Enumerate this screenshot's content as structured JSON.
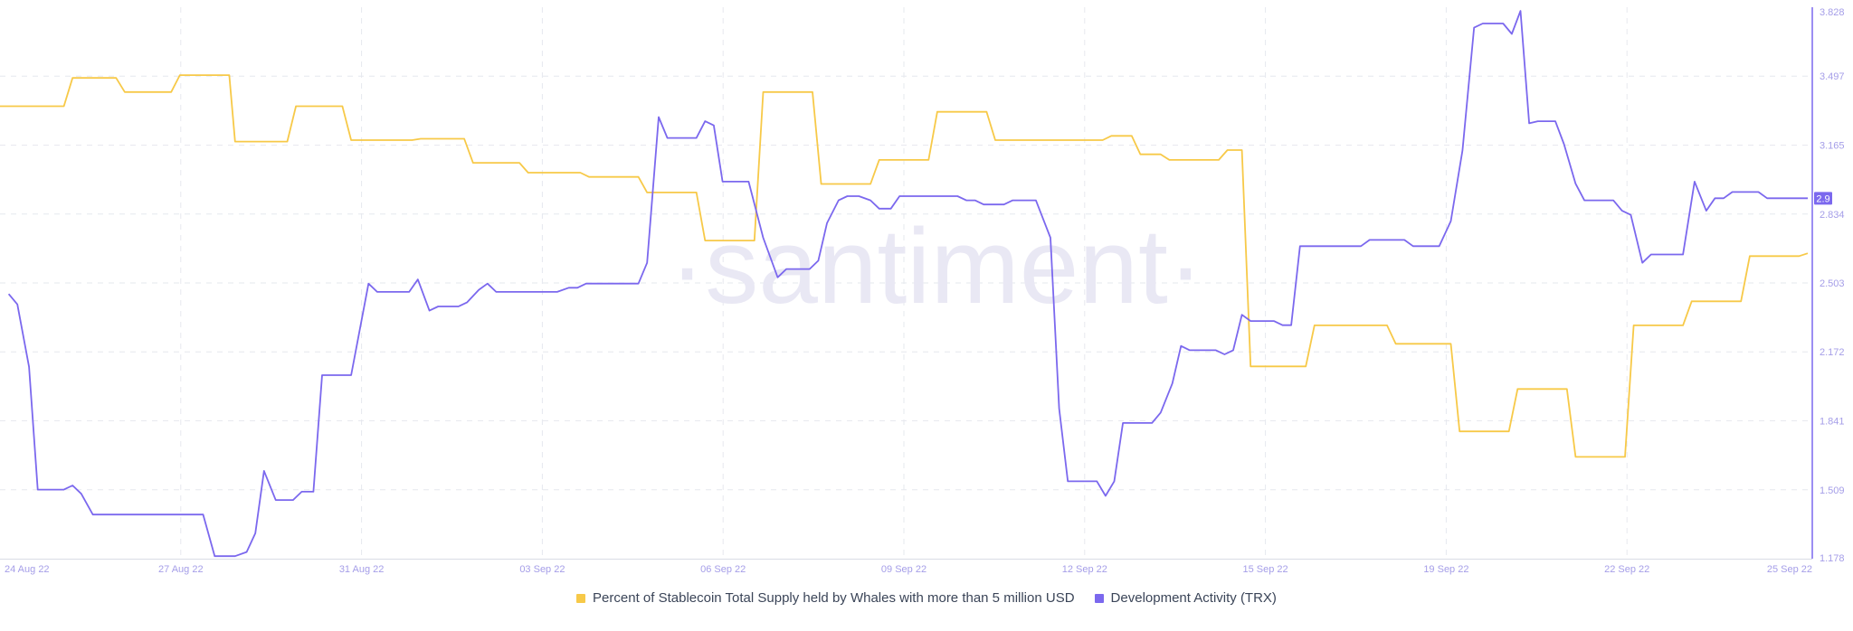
{
  "chart_data": {
    "type": "line",
    "watermark": "·santiment·",
    "x_ticks": [
      "24 Aug 22",
      "27 Aug 22",
      "31 Aug 22",
      "03 Sep 22",
      "06 Sep 22",
      "09 Sep 22",
      "12 Sep 22",
      "15 Sep 22",
      "19 Sep 22",
      "22 Sep 22",
      "25 Sep 22"
    ],
    "y_ticks": [
      "1.178",
      "1.509",
      "1.841",
      "2.172",
      "2.503",
      "2.834",
      "3.165",
      "3.497",
      "3.828"
    ],
    "ylim": [
      1.178,
      3.828
    ],
    "grid": true,
    "legend_position": "bottom",
    "current_value_label": "2.9",
    "colors": {
      "stablecoin": "#f7c948",
      "dev_activity": "#7b68ee",
      "grid": "#e6e8ee",
      "tick_text": "#a59ee8",
      "watermark": "#e9e8f4"
    },
    "series": [
      {
        "name": "Percent of Stablecoin Total Supply held by Whales with more than 5 million USD",
        "key": "stablecoin",
        "axis": "hidden",
        "points": [
          [
            0,
            77.0
          ],
          [
            2.2,
            77.0
          ],
          [
            2.5,
            79.0
          ],
          [
            4.0,
            79.0
          ],
          [
            4.3,
            78.0
          ],
          [
            5.9,
            78.0
          ],
          [
            6.2,
            79.2
          ],
          [
            7.9,
            79.2
          ],
          [
            8.1,
            74.5
          ],
          [
            9.9,
            74.5
          ],
          [
            10.2,
            77.0
          ],
          [
            11.8,
            77.0
          ],
          [
            12.1,
            74.6
          ],
          [
            14.2,
            74.6
          ],
          [
            14.5,
            74.7
          ],
          [
            16.0,
            74.7
          ],
          [
            16.3,
            73.0
          ],
          [
            17.9,
            73.0
          ],
          [
            18.2,
            72.3
          ],
          [
            20.0,
            72.3
          ],
          [
            20.3,
            72.0
          ],
          [
            22.0,
            72.0
          ],
          [
            22.3,
            70.9
          ],
          [
            24.0,
            70.9
          ],
          [
            24.3,
            67.5
          ],
          [
            26.0,
            67.5
          ],
          [
            26.3,
            78.0
          ],
          [
            28.0,
            78.0
          ],
          [
            28.3,
            71.5
          ],
          [
            30.0,
            71.5
          ],
          [
            30.3,
            73.2
          ],
          [
            32.0,
            73.2
          ],
          [
            32.3,
            76.6
          ],
          [
            34.0,
            76.6
          ],
          [
            34.3,
            74.6
          ],
          [
            38.0,
            74.6
          ],
          [
            38.3,
            74.9
          ],
          [
            39.0,
            74.9
          ],
          [
            39.3,
            73.6
          ],
          [
            40.0,
            73.6
          ],
          [
            40.3,
            73.2
          ],
          [
            42.0,
            73.2
          ],
          [
            42.3,
            73.9
          ],
          [
            42.8,
            73.9
          ],
          [
            43.1,
            58.6
          ],
          [
            45.0,
            58.6
          ],
          [
            45.3,
            61.5
          ],
          [
            47.8,
            61.5
          ],
          [
            48.1,
            60.2
          ],
          [
            50.0,
            60.2
          ],
          [
            50.3,
            54.0
          ],
          [
            52.0,
            54.0
          ],
          [
            52.3,
            57.0
          ],
          [
            54.0,
            57.0
          ],
          [
            54.3,
            52.2
          ],
          [
            56.0,
            52.2
          ],
          [
            56.3,
            61.5
          ],
          [
            58.0,
            61.5
          ],
          [
            58.3,
            63.2
          ],
          [
            60.0,
            63.2
          ],
          [
            60.3,
            66.4
          ],
          [
            62.0,
            66.4
          ],
          [
            62.3,
            66.6
          ]
        ]
      },
      {
        "name": "Development Activity (TRX)",
        "key": "dev_activity",
        "axis": "right",
        "points": [
          [
            0.3,
            2.45
          ],
          [
            0.6,
            2.4
          ],
          [
            1.0,
            2.1
          ],
          [
            1.3,
            1.51
          ],
          [
            2.2,
            1.51
          ],
          [
            2.5,
            1.53
          ],
          [
            2.8,
            1.49
          ],
          [
            3.2,
            1.39
          ],
          [
            7.0,
            1.39
          ],
          [
            7.4,
            1.19
          ],
          [
            8.1,
            1.19
          ],
          [
            8.5,
            1.21
          ],
          [
            8.8,
            1.3
          ],
          [
            9.1,
            1.6
          ],
          [
            9.5,
            1.46
          ],
          [
            10.1,
            1.46
          ],
          [
            10.4,
            1.5
          ],
          [
            10.8,
            1.5
          ],
          [
            11.1,
            2.06
          ],
          [
            12.1,
            2.06
          ],
          [
            12.7,
            2.5
          ],
          [
            13.0,
            2.46
          ],
          [
            14.1,
            2.46
          ],
          [
            14.4,
            2.52
          ],
          [
            14.8,
            2.37
          ],
          [
            15.1,
            2.39
          ],
          [
            15.8,
            2.39
          ],
          [
            16.1,
            2.41
          ],
          [
            16.5,
            2.47
          ],
          [
            16.8,
            2.5
          ],
          [
            17.1,
            2.46
          ],
          [
            19.2,
            2.46
          ],
          [
            19.6,
            2.48
          ],
          [
            19.9,
            2.48
          ],
          [
            20.2,
            2.5
          ],
          [
            22.0,
            2.5
          ],
          [
            22.3,
            2.6
          ],
          [
            22.7,
            3.3
          ],
          [
            23.0,
            3.2
          ],
          [
            24.0,
            3.2
          ],
          [
            24.3,
            3.28
          ],
          [
            24.6,
            3.26
          ],
          [
            24.9,
            2.99
          ],
          [
            25.8,
            2.99
          ],
          [
            26.3,
            2.72
          ],
          [
            26.8,
            2.53
          ],
          [
            27.1,
            2.57
          ],
          [
            27.9,
            2.57
          ],
          [
            28.2,
            2.61
          ],
          [
            28.5,
            2.79
          ],
          [
            28.9,
            2.9
          ],
          [
            29.2,
            2.92
          ],
          [
            29.6,
            2.92
          ],
          [
            30.0,
            2.9
          ],
          [
            30.3,
            2.86
          ],
          [
            30.7,
            2.86
          ],
          [
            31.0,
            2.92
          ],
          [
            33.0,
            2.92
          ],
          [
            33.3,
            2.9
          ],
          [
            33.6,
            2.9
          ],
          [
            33.9,
            2.88
          ],
          [
            34.6,
            2.88
          ],
          [
            34.9,
            2.9
          ],
          [
            35.7,
            2.9
          ],
          [
            36.2,
            2.72
          ],
          [
            36.5,
            1.9
          ],
          [
            36.8,
            1.55
          ],
          [
            37.8,
            1.55
          ],
          [
            38.1,
            1.48
          ],
          [
            38.4,
            1.55
          ],
          [
            38.7,
            1.83
          ],
          [
            39.7,
            1.83
          ],
          [
            40.0,
            1.88
          ],
          [
            40.4,
            2.02
          ],
          [
            40.7,
            2.2
          ],
          [
            41.0,
            2.18
          ],
          [
            41.9,
            2.18
          ],
          [
            42.2,
            2.16
          ],
          [
            42.5,
            2.18
          ],
          [
            42.8,
            2.35
          ],
          [
            43.1,
            2.32
          ],
          [
            43.9,
            2.32
          ],
          [
            44.2,
            2.3
          ],
          [
            44.5,
            2.3
          ],
          [
            44.8,
            2.68
          ],
          [
            46.9,
            2.68
          ],
          [
            47.2,
            2.71
          ],
          [
            48.4,
            2.71
          ],
          [
            48.7,
            2.68
          ],
          [
            49.6,
            2.68
          ],
          [
            50.0,
            2.8
          ],
          [
            50.4,
            3.14
          ],
          [
            50.8,
            3.73
          ],
          [
            51.1,
            3.75
          ],
          [
            51.8,
            3.75
          ],
          [
            52.1,
            3.7
          ],
          [
            52.4,
            3.81
          ],
          [
            52.7,
            3.27
          ],
          [
            53.0,
            3.28
          ],
          [
            53.6,
            3.28
          ],
          [
            53.9,
            3.17
          ],
          [
            54.3,
            2.98
          ],
          [
            54.6,
            2.9
          ],
          [
            55.6,
            2.9
          ],
          [
            55.9,
            2.85
          ],
          [
            56.2,
            2.83
          ],
          [
            56.6,
            2.6
          ],
          [
            56.9,
            2.64
          ],
          [
            58.0,
            2.64
          ],
          [
            58.4,
            2.99
          ],
          [
            58.8,
            2.85
          ],
          [
            59.1,
            2.91
          ],
          [
            59.4,
            2.91
          ],
          [
            59.7,
            2.94
          ],
          [
            60.6,
            2.94
          ],
          [
            60.9,
            2.91
          ],
          [
            62.3,
            2.91
          ]
        ]
      }
    ]
  }
}
